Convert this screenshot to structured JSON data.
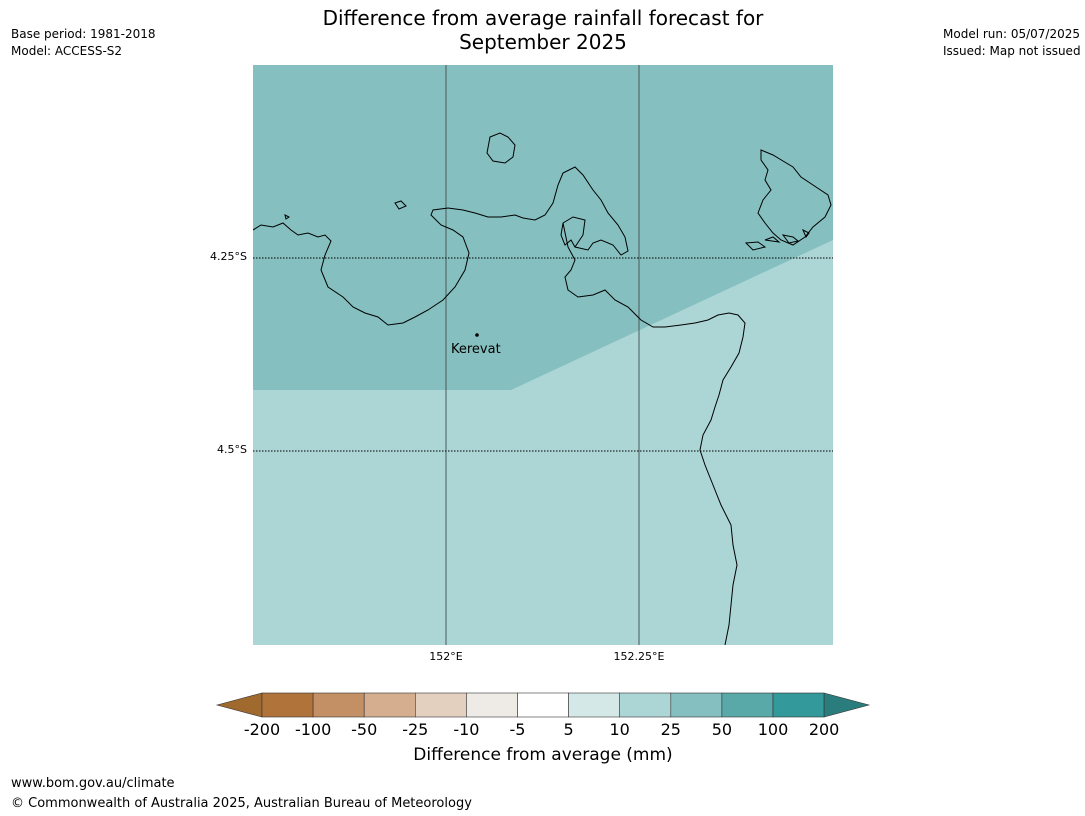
{
  "title_line1": "Difference from average rainfall forecast for",
  "title_line2": "September 2025",
  "meta_left": [
    "Base period: 1981-2018",
    "Model: ACCESS-S2"
  ],
  "meta_right": [
    "Model run: 05/07/2025",
    "Issued: Map not issued"
  ],
  "lat_labels": [
    "4.25°S",
    "4.5°S"
  ],
  "lon_labels": [
    "152°E",
    "152.25°E"
  ],
  "place_name": "Kerevat",
  "colorbar": {
    "ticks": [
      "-200",
      "-100",
      "-50",
      "-25",
      "-10",
      "-5",
      "5",
      "10",
      "25",
      "50",
      "100",
      "200"
    ],
    "colors": [
      "#a0692e",
      "#b0743a",
      "#c39066",
      "#d4ae8e",
      "#e3d0be",
      "#eeebe6",
      "#ffffff",
      "#d4e8e8",
      "#acd5d5",
      "#85bfbf",
      "#5aa9a9",
      "#33999a",
      "#2a7d7c"
    ],
    "label": "Difference from average (mm)"
  },
  "map_fill": {
    "class_25_50": "#85bfbf",
    "class_10_25": "#acd5d5"
  },
  "footer_url": "www.bom.gov.au/climate",
  "footer_copyright": "© Commonwealth of Australia 2025, Australian Bureau of Meteorology"
}
